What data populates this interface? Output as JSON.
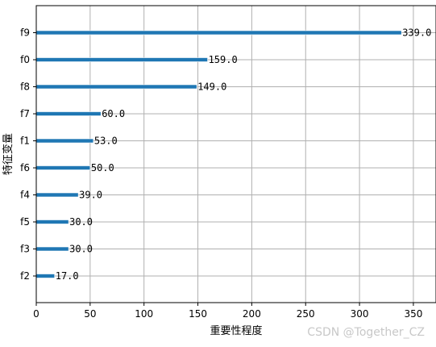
{
  "chart_data": {
    "type": "bar",
    "orientation": "horizontal",
    "categories": [
      "f2",
      "f3",
      "f5",
      "f4",
      "f6",
      "f1",
      "f7",
      "f8",
      "f0",
      "f9"
    ],
    "values": [
      17,
      30,
      30,
      39,
      50,
      53,
      60,
      149,
      159,
      339
    ],
    "data_labels": [
      "17.0",
      "30.0",
      "30.0",
      "39.0",
      "50.0",
      "53.0",
      "60.0",
      "149.0",
      "159.0",
      "339.0"
    ],
    "title": "",
    "xlabel": "重要性程度",
    "ylabel": "特征变量",
    "xlim": [
      0,
      371
    ],
    "xticks": [
      0,
      50,
      100,
      150,
      200,
      250,
      300,
      350
    ],
    "grid": true,
    "legend": "none",
    "bar_color": "#1f77b4"
  },
  "watermark": "CSDN @Together_CZ"
}
